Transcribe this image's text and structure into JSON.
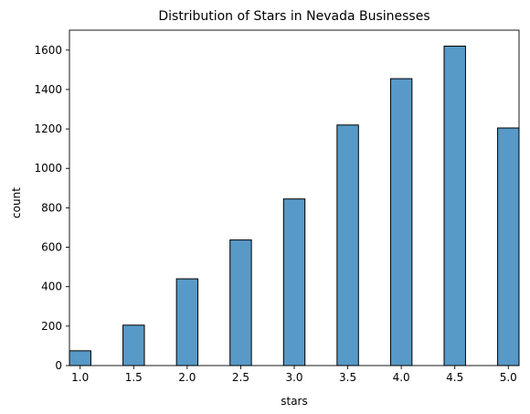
{
  "chart_data": {
    "type": "bar",
    "title": "Distribution of Stars in Nevada Businesses",
    "xlabel": "stars",
    "ylabel": "count",
    "x": [
      1.0,
      1.5,
      2.0,
      2.5,
      3.0,
      3.5,
      4.0,
      4.5,
      5.0
    ],
    "values": [
      75,
      205,
      440,
      637,
      845,
      1220,
      1455,
      1620,
      1205
    ],
    "xticks": [
      "1.0",
      "1.5",
      "2.0",
      "2.5",
      "3.0",
      "3.5",
      "4.0",
      "4.5",
      "5.0"
    ],
    "yticks": [
      "0",
      "200",
      "400",
      "600",
      "800",
      "1000",
      "1200",
      "1400",
      "1600"
    ],
    "ytick_values": [
      0,
      200,
      400,
      600,
      800,
      1000,
      1200,
      1400,
      1600
    ],
    "xlim": [
      0.9,
      5.1
    ],
    "ylim": [
      0,
      1701
    ],
    "bar_width": 0.2,
    "grid": false,
    "bar_color": "#5799c7",
    "edge_color": "#000000"
  }
}
